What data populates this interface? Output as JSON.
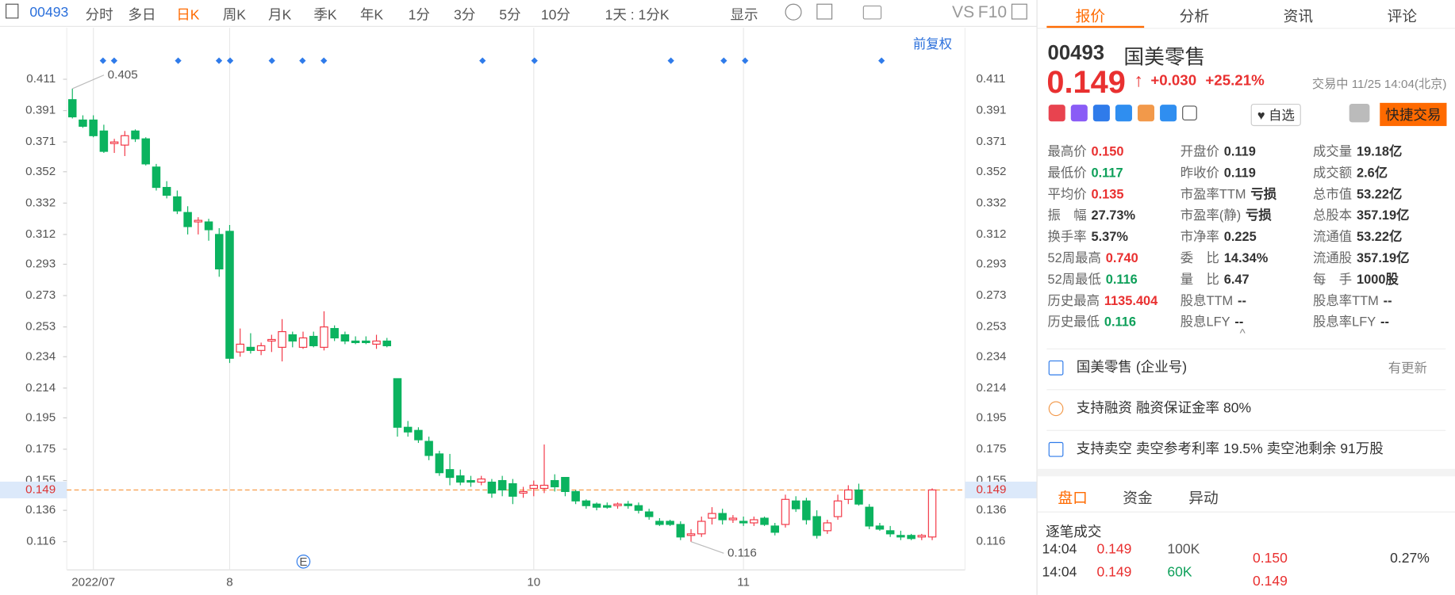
{
  "toolbar": {
    "code": "00493",
    "periods": [
      "分时",
      "多日",
      "日K",
      "周K",
      "月K",
      "季K",
      "年K",
      "1分",
      "3分",
      "5分",
      "10分"
    ],
    "range": "1天 : 1分K",
    "display": "显示",
    "vs": "VS",
    "f10": "F10",
    "adjust": "前复权"
  },
  "chart_data": {
    "type": "candlestick",
    "categories": [
      null,
      null,
      "2022/07",
      null,
      null,
      null,
      null,
      null,
      null,
      null,
      null,
      null,
      null,
      null,
      null,
      "8",
      null,
      null,
      null,
      null,
      null,
      null,
      null,
      null,
      null,
      null,
      null,
      null,
      null,
      null,
      null,
      null,
      null,
      null,
      null,
      null,
      null,
      null,
      null,
      null,
      null,
      null,
      null,
      null,
      "10",
      null,
      null,
      null,
      null,
      null,
      null,
      null,
      null,
      null,
      null,
      null,
      null,
      null,
      null,
      null,
      null,
      null,
      null,
      null,
      "11",
      null,
      null,
      null,
      null,
      null,
      null,
      null,
      null,
      null,
      null,
      null,
      null,
      null,
      null,
      null,
      null,
      null,
      null
    ],
    "candles": [
      [
        0.398,
        0.405,
        0.386,
        0.387
      ],
      [
        0.385,
        0.388,
        0.38,
        0.381
      ],
      [
        0.385,
        0.388,
        0.374,
        0.375
      ],
      [
        0.378,
        0.382,
        0.364,
        0.365
      ],
      [
        0.37,
        0.373,
        0.364,
        0.371
      ],
      [
        0.369,
        0.378,
        0.362,
        0.375
      ],
      [
        0.378,
        0.379,
        0.371,
        0.373
      ],
      [
        0.373,
        0.374,
        0.356,
        0.357
      ],
      [
        0.355,
        0.357,
        0.34,
        0.342
      ],
      [
        0.342,
        0.346,
        0.335,
        0.337
      ],
      [
        0.336,
        0.34,
        0.325,
        0.327
      ],
      [
        0.326,
        0.33,
        0.312,
        0.317
      ],
      [
        0.32,
        0.323,
        0.312,
        0.321
      ],
      [
        0.32,
        0.322,
        0.308,
        0.315
      ],
      [
        0.312,
        0.316,
        0.285,
        0.29
      ],
      [
        0.314,
        0.318,
        0.23,
        0.233
      ],
      [
        0.237,
        0.252,
        0.234,
        0.242
      ],
      [
        0.24,
        0.249,
        0.236,
        0.238
      ],
      [
        0.238,
        0.243,
        0.235,
        0.241
      ],
      [
        0.244,
        0.248,
        0.237,
        0.245
      ],
      [
        0.24,
        0.258,
        0.231,
        0.25
      ],
      [
        0.248,
        0.25,
        0.24,
        0.244
      ],
      [
        0.24,
        0.25,
        0.239,
        0.246
      ],
      [
        0.247,
        0.25,
        0.24,
        0.241
      ],
      [
        0.24,
        0.263,
        0.238,
        0.253
      ],
      [
        0.252,
        0.254,
        0.244,
        0.246
      ],
      [
        0.248,
        0.25,
        0.242,
        0.244
      ],
      [
        0.244,
        0.247,
        0.242,
        0.243
      ],
      [
        0.244,
        0.247,
        0.242,
        0.243
      ],
      [
        0.242,
        0.248,
        0.239,
        0.244
      ],
      [
        0.244,
        0.246,
        0.24,
        0.241
      ],
      [
        0.22,
        0.22,
        0.183,
        0.189
      ],
      [
        0.189,
        0.193,
        0.183,
        0.186
      ],
      [
        0.187,
        0.189,
        0.179,
        0.181
      ],
      [
        0.18,
        0.183,
        0.168,
        0.171
      ],
      [
        0.172,
        0.174,
        0.158,
        0.16
      ],
      [
        0.162,
        0.172,
        0.152,
        0.157
      ],
      [
        0.158,
        0.162,
        0.152,
        0.154
      ],
      [
        0.155,
        0.158,
        0.151,
        0.154
      ],
      [
        0.154,
        0.158,
        0.152,
        0.156
      ],
      [
        0.154,
        0.156,
        0.144,
        0.147
      ],
      [
        0.155,
        0.158,
        0.145,
        0.149
      ],
      [
        0.153,
        0.156,
        0.14,
        0.145
      ],
      [
        0.147,
        0.151,
        0.144,
        0.148
      ],
      [
        0.15,
        0.155,
        0.145,
        0.152
      ],
      [
        0.15,
        0.178,
        0.147,
        0.152
      ],
      [
        0.155,
        0.159,
        0.148,
        0.151
      ],
      [
        0.157,
        0.157,
        0.145,
        0.148
      ],
      [
        0.148,
        0.149,
        0.14,
        0.142
      ],
      [
        0.142,
        0.143,
        0.137,
        0.139
      ],
      [
        0.14,
        0.141,
        0.136,
        0.138
      ],
      [
        0.139,
        0.141,
        0.137,
        0.138
      ],
      [
        0.139,
        0.141,
        0.137,
        0.14
      ],
      [
        0.14,
        0.142,
        0.137,
        0.139
      ],
      [
        0.139,
        0.141,
        0.134,
        0.136
      ],
      [
        0.135,
        0.137,
        0.13,
        0.132
      ],
      [
        0.129,
        0.131,
        0.126,
        0.127
      ],
      [
        0.129,
        0.13,
        0.126,
        0.127
      ],
      [
        0.127,
        0.129,
        0.117,
        0.119
      ],
      [
        0.12,
        0.124,
        0.116,
        0.121
      ],
      [
        0.121,
        0.132,
        0.119,
        0.129
      ],
      [
        0.131,
        0.138,
        0.127,
        0.134
      ],
      [
        0.134,
        0.137,
        0.127,
        0.13
      ],
      [
        0.13,
        0.133,
        0.128,
        0.131
      ],
      [
        0.129,
        0.132,
        0.126,
        0.128
      ],
      [
        0.128,
        0.132,
        0.126,
        0.13
      ],
      [
        0.131,
        0.132,
        0.126,
        0.127
      ],
      [
        0.126,
        0.128,
        0.12,
        0.122
      ],
      [
        0.127,
        0.146,
        0.125,
        0.143
      ],
      [
        0.142,
        0.145,
        0.135,
        0.137
      ],
      [
        0.142,
        0.144,
        0.127,
        0.13
      ],
      [
        0.132,
        0.136,
        0.118,
        0.12
      ],
      [
        0.123,
        0.13,
        0.121,
        0.128
      ],
      [
        0.132,
        0.146,
        0.13,
        0.142
      ],
      [
        0.143,
        0.152,
        0.14,
        0.149
      ],
      [
        0.149,
        0.153,
        0.139,
        0.14
      ],
      [
        0.138,
        0.14,
        0.124,
        0.126
      ],
      [
        0.126,
        0.128,
        0.123,
        0.124
      ],
      [
        0.123,
        0.126,
        0.119,
        0.121
      ],
      [
        0.12,
        0.123,
        0.117,
        0.119
      ],
      [
        0.12,
        0.121,
        0.117,
        0.118
      ],
      [
        0.119,
        0.121,
        0.117,
        0.12
      ],
      [
        0.119,
        0.15,
        0.117,
        0.149
      ]
    ],
    "ylim": [
      0.098,
      0.432
    ],
    "yticks": [
      0.411,
      0.391,
      0.371,
      0.352,
      0.332,
      0.312,
      0.293,
      0.273,
      0.253,
      0.234,
      0.214,
      0.195,
      0.175,
      0.155,
      0.136,
      0.116
    ],
    "last_price": 0.149,
    "annotations": [
      0.405,
      0.116
    ],
    "up_color": "#f23645",
    "down_color": "#0bb35f",
    "last_color": "#f7943c",
    "grid": true
  },
  "panel": {
    "tabs": [
      "报价",
      "分析",
      "资讯",
      "评论"
    ],
    "code": "00493",
    "name": "国美零售",
    "price": "0.149",
    "change": "+0.030",
    "change_pct": "+25.21%",
    "status": "交易中 11/25 14:04(北京)",
    "watch": "自选",
    "quick_trade": "快捷交易",
    "stats": [
      [
        {
          "label": "最高价",
          "value": "0.150",
          "color": "#e93030"
        },
        {
          "label": "开盘价",
          "value": "0.119"
        },
        {
          "label": "成交量",
          "value": "19.18亿"
        }
      ],
      [
        {
          "label": "最低价",
          "value": "0.117",
          "color": "#0ea05a"
        },
        {
          "label": "昨收价",
          "value": "0.119"
        },
        {
          "label": "成交额",
          "value": "2.6亿"
        }
      ],
      [
        {
          "label": "平均价",
          "value": "0.135",
          "color": "#e93030"
        },
        {
          "label": "市盈率TTM",
          "value": "亏损"
        },
        {
          "label": "总市值",
          "value": "53.22亿"
        }
      ],
      [
        {
          "label": "振　幅",
          "value": "27.73%"
        },
        {
          "label": "市盈率(静)",
          "value": "亏损"
        },
        {
          "label": "总股本",
          "value": "357.19亿"
        }
      ],
      [
        {
          "label": "换手率",
          "value": "5.37%"
        },
        {
          "label": "市净率",
          "value": "0.225"
        },
        {
          "label": "流通值",
          "value": "53.22亿"
        }
      ],
      [
        {
          "label": "52周最高",
          "value": "0.740",
          "color": "#e93030"
        },
        {
          "label": "委　比",
          "value": "14.34%"
        },
        {
          "label": "流通股",
          "value": "357.19亿"
        }
      ],
      [
        {
          "label": "52周最低",
          "value": "0.116",
          "color": "#0ea05a"
        },
        {
          "label": "量　比",
          "value": "6.47"
        },
        {
          "label": "每　手",
          "value": "1000股"
        }
      ],
      [
        {
          "label": "历史最高",
          "value": "1135.404",
          "color": "#e93030"
        },
        {
          "label": "股息TTM",
          "value": "--"
        },
        {
          "label": "股息率TTM",
          "value": "--"
        }
      ],
      [
        {
          "label": "历史最低",
          "value": "0.116",
          "color": "#0ea05a"
        },
        {
          "label": "股息LFY",
          "value": "--"
        },
        {
          "label": "股息率LFY",
          "value": "--"
        }
      ]
    ],
    "info": [
      {
        "text": "国美零售 (企业号)",
        "extra": "有更新"
      },
      {
        "text": "支持融资 融资保证金率 80%"
      },
      {
        "text": "支持卖空 卖空参考利率 19.5% 卖空池剩余 91万股"
      }
    ],
    "bottom_tabs": [
      "盘口",
      "资金",
      "异动"
    ],
    "ticks_title": "逐笔成交",
    "trades": [
      [
        "14:04",
        "0.149",
        "100K"
      ],
      [
        "14:04",
        "0.149",
        "60K"
      ]
    ],
    "book": [
      [
        "0.150",
        "0.27%"
      ],
      [
        "0.149"
      ]
    ]
  }
}
